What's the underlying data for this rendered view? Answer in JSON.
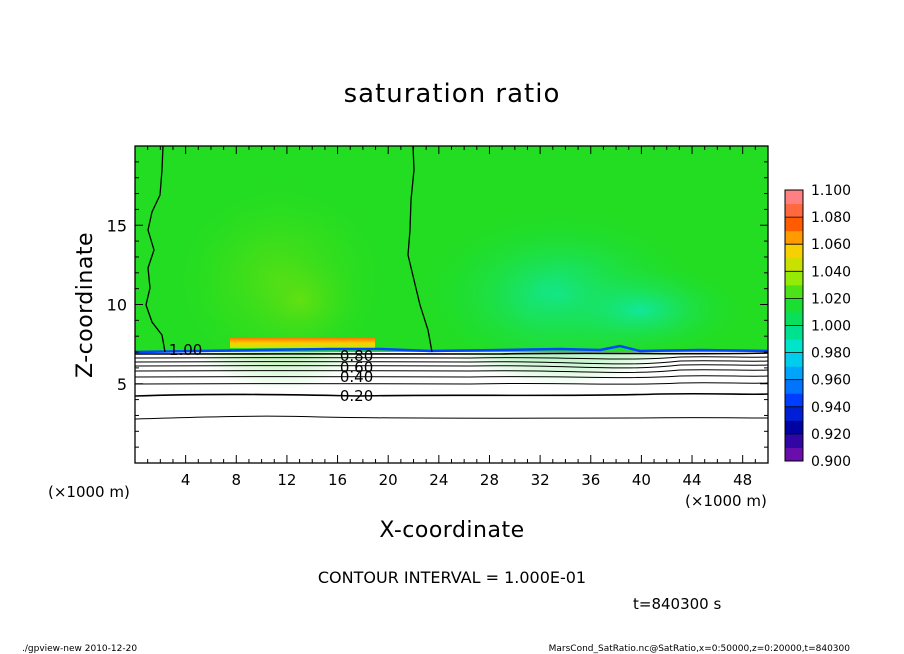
{
  "chart_data": {
    "type": "heatmap",
    "title": "saturation ratio",
    "xlabel": "X-coordinate",
    "ylabel": "Z-coordinate",
    "x_unit": "(×1000 m)",
    "y_unit": "(×1000 m)",
    "xlim": [
      0,
      50
    ],
    "ylim": [
      0,
      20
    ],
    "x_ticks": [
      "4",
      "8",
      "12",
      "16",
      "20",
      "24",
      "28",
      "32",
      "36",
      "40",
      "44",
      "48"
    ],
    "y_ticks": [
      "5",
      "10",
      "15"
    ],
    "colorbar": {
      "levels": [
        "0.900",
        "0.920",
        "0.940",
        "0.960",
        "0.980",
        "1.000",
        "1.020",
        "1.040",
        "1.060",
        "1.080",
        "1.100"
      ],
      "colors": [
        "#6a0dad",
        "#00009c",
        "#0033ff",
        "#0099ff",
        "#00e5e5",
        "#00e070",
        "#22dd22",
        "#aaee00",
        "#ffcc00",
        "#ff5500",
        "#ff8080"
      ]
    },
    "contour_labels": [
      {
        "label": "1.00",
        "x": 4.0,
        "z": 7.2
      },
      {
        "label": "0.80",
        "x": 17.5,
        "z": 6.8
      },
      {
        "label": "0.60",
        "x": 17.5,
        "z": 6.1
      },
      {
        "label": "0.40",
        "x": 17.5,
        "z": 5.5
      },
      {
        "label": "0.20",
        "x": 17.5,
        "z": 4.3
      }
    ],
    "contour_interval_text": "CONTOUR INTERVAL = 1.000E-01",
    "time_text": "t=840300 s"
  },
  "footer": {
    "left": "./gpview-new   2010-12-20",
    "right": "MarsCond_SatRatio.nc@SatRatio,x=0:50000,z=0:20000,t=840300"
  }
}
